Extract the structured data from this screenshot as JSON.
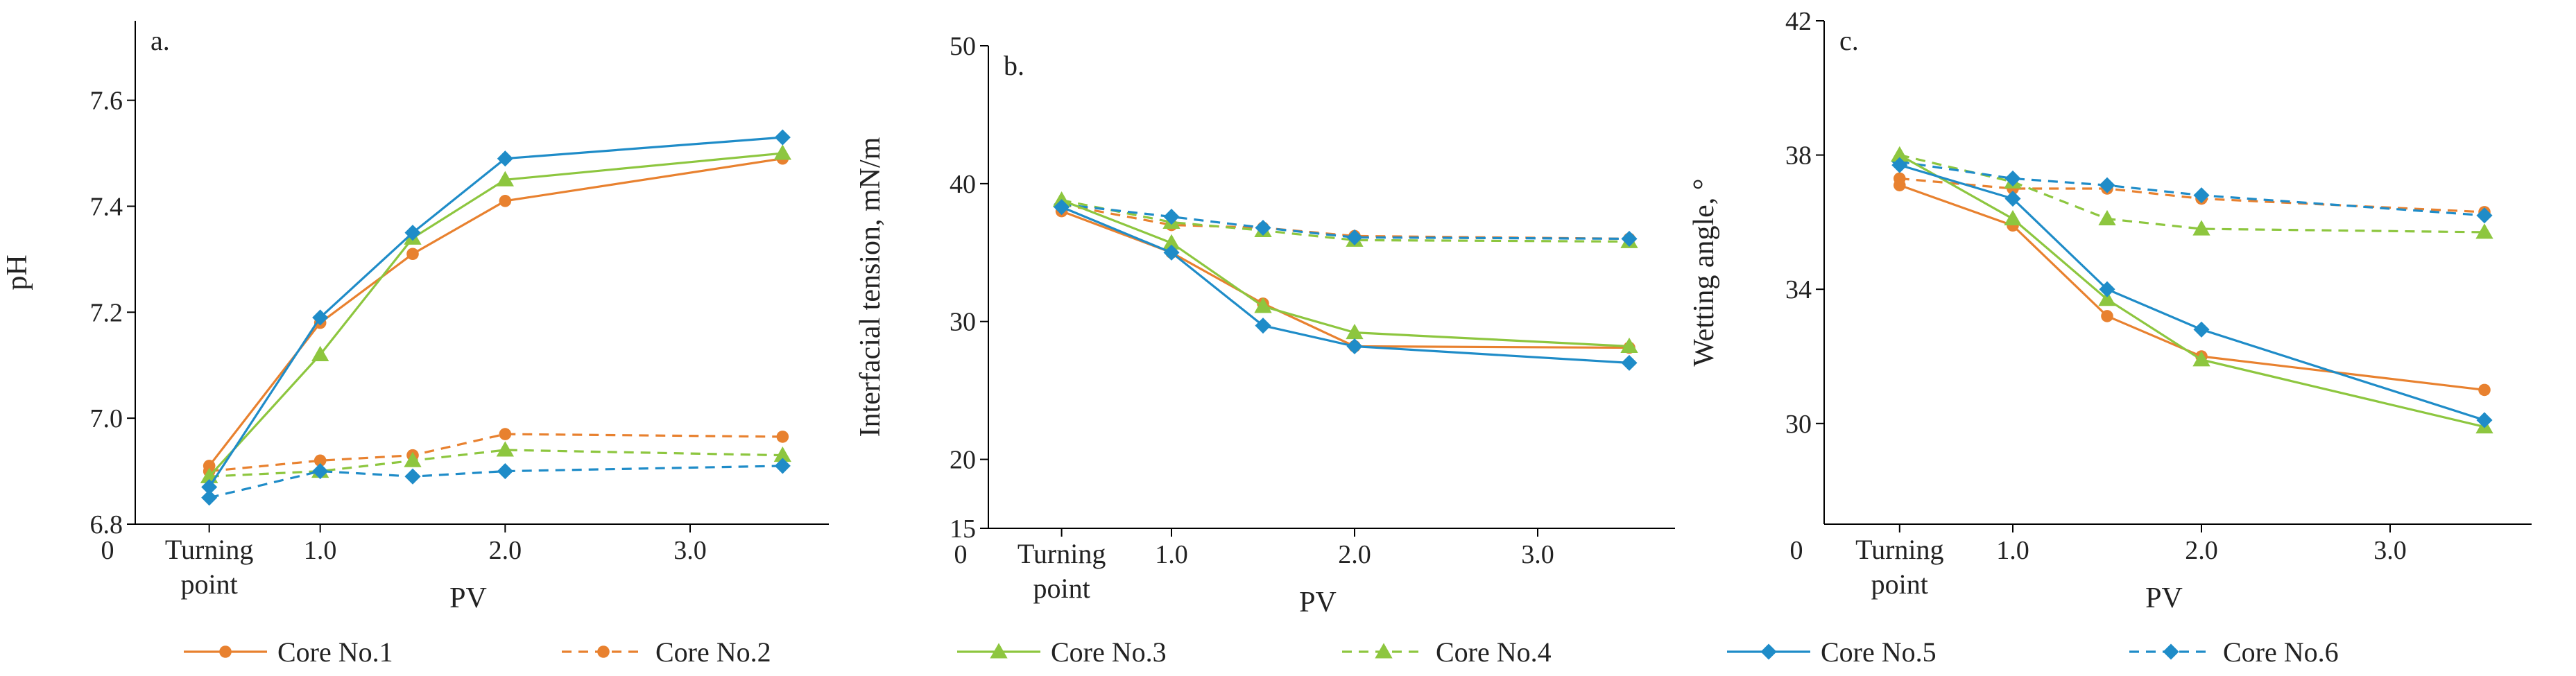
{
  "colors": {
    "core1": "#E8812F",
    "core2": "#E8812F",
    "core3": "#8DC63F",
    "core4": "#8DC63F",
    "core5": "#1F8CC8",
    "core6": "#1F8CC8"
  },
  "legend": [
    {
      "label": "Core No.1",
      "series": "core1",
      "dash": false,
      "marker": "circle"
    },
    {
      "label": "Core No.2",
      "series": "core2",
      "dash": true,
      "marker": "circle"
    },
    {
      "label": "Core No.3",
      "series": "core3",
      "dash": false,
      "marker": "triangle"
    },
    {
      "label": "Core No.4",
      "series": "core4",
      "dash": true,
      "marker": "triangle"
    },
    {
      "label": "Core No.5",
      "series": "core5",
      "dash": false,
      "marker": "diamond"
    },
    {
      "label": "Core No.6",
      "series": "core6",
      "dash": true,
      "marker": "diamond"
    }
  ],
  "chart_data": [
    {
      "type": "line",
      "panel_label": "a.",
      "ylabel": "pH",
      "xlabel": "PV",
      "xlim": [
        0,
        3.75
      ],
      "ylim": [
        6.8,
        7.75
      ],
      "x_ticks": [
        {
          "value": 0,
          "label": "0"
        },
        {
          "value": 1.0,
          "label": "1.0"
        },
        {
          "value": 2.0,
          "label": "2.0"
        },
        {
          "value": 3.0,
          "label": "3.0"
        }
      ],
      "turning_point": {
        "x": 0.4,
        "label_line1": "Turning",
        "label_line2": "point"
      },
      "y_ticks": [
        {
          "value": 6.8,
          "label": "6.8"
        },
        {
          "value": 7.0,
          "label": "7.0"
        },
        {
          "value": 7.2,
          "label": "7.2"
        },
        {
          "value": 7.4,
          "label": "7.4"
        },
        {
          "value": 7.6,
          "label": "7.6"
        }
      ],
      "x": [
        0.4,
        1.0,
        1.5,
        2.0,
        3.5
      ],
      "series": [
        {
          "name": "Core No.1",
          "key": "core1",
          "values": [
            6.91,
            7.18,
            7.31,
            7.41,
            7.49
          ]
        },
        {
          "name": "Core No.2",
          "key": "core2",
          "values": [
            6.9,
            6.92,
            6.93,
            6.97,
            6.965
          ]
        },
        {
          "name": "Core No.3",
          "key": "core3",
          "values": [
            6.89,
            7.12,
            7.34,
            7.45,
            7.5
          ]
        },
        {
          "name": "Core No.4",
          "key": "core4",
          "values": [
            6.89,
            6.9,
            6.92,
            6.94,
            6.93
          ]
        },
        {
          "name": "Core No.5",
          "key": "core5",
          "values": [
            6.87,
            7.19,
            7.35,
            7.49,
            7.53
          ]
        },
        {
          "name": "Core No.6",
          "key": "core6",
          "values": [
            6.85,
            6.9,
            6.89,
            6.9,
            6.91
          ]
        }
      ]
    },
    {
      "type": "line",
      "panel_label": "b.",
      "ylabel": "Interfacial tension, mN/m",
      "xlabel": "PV",
      "xlim": [
        0,
        3.75
      ],
      "ylim": [
        15,
        50
      ],
      "x_ticks": [
        {
          "value": 0,
          "label": "0"
        },
        {
          "value": 1.0,
          "label": "1.0"
        },
        {
          "value": 2.0,
          "label": "2.0"
        },
        {
          "value": 3.0,
          "label": "3.0"
        }
      ],
      "turning_point": {
        "x": 0.4,
        "label_line1": "Turning",
        "label_line2": "point"
      },
      "y_ticks": [
        {
          "value": 15,
          "label": "15"
        },
        {
          "value": 20,
          "label": "20"
        },
        {
          "value": 30,
          "label": "30"
        },
        {
          "value": 40,
          "label": "40"
        },
        {
          "value": 50,
          "label": "50"
        }
      ],
      "x": [
        0.4,
        1.0,
        1.5,
        2.0,
        3.5
      ],
      "series": [
        {
          "name": "Core No.1",
          "key": "core1",
          "values": [
            38.0,
            35.0,
            31.3,
            28.2,
            28.1
          ]
        },
        {
          "name": "Core No.2",
          "key": "core2",
          "values": [
            38.5,
            37.0,
            36.8,
            36.2,
            36.0
          ]
        },
        {
          "name": "Core No.3",
          "key": "core3",
          "values": [
            38.8,
            35.7,
            31.1,
            29.2,
            28.2
          ]
        },
        {
          "name": "Core No.4",
          "key": "core4",
          "values": [
            38.8,
            37.2,
            36.6,
            35.9,
            35.8
          ]
        },
        {
          "name": "Core No.5",
          "key": "core5",
          "values": [
            38.3,
            35.0,
            29.7,
            28.2,
            27.0
          ]
        },
        {
          "name": "Core No.6",
          "key": "core6",
          "values": [
            38.5,
            37.6,
            36.8,
            36.1,
            36.0
          ]
        }
      ]
    },
    {
      "type": "line",
      "panel_label": "c.",
      "ylabel": "Wetting angle, °",
      "xlabel": "PV",
      "xlim": [
        0,
        3.75
      ],
      "ylim": [
        27,
        42
      ],
      "x_ticks": [
        {
          "value": 0,
          "label": "0"
        },
        {
          "value": 1.0,
          "label": "1.0"
        },
        {
          "value": 2.0,
          "label": "2.0"
        },
        {
          "value": 3.0,
          "label": "3.0"
        }
      ],
      "turning_point": {
        "x": 0.4,
        "label_line1": "Turning",
        "label_line2": "point"
      },
      "y_ticks": [
        {
          "value": 30,
          "label": "30"
        },
        {
          "value": 34,
          "label": "34"
        },
        {
          "value": 38,
          "label": "38"
        },
        {
          "value": 42,
          "label": "42"
        }
      ],
      "x": [
        0.4,
        1.0,
        1.5,
        2.0,
        3.5
      ],
      "series": [
        {
          "name": "Core No.1",
          "key": "core1",
          "values": [
            37.1,
            35.9,
            33.2,
            32.0,
            31.0
          ]
        },
        {
          "name": "Core No.2",
          "key": "core2",
          "values": [
            37.3,
            37.0,
            37.0,
            36.7,
            36.3
          ]
        },
        {
          "name": "Core No.3",
          "key": "core3",
          "values": [
            38.0,
            36.1,
            33.7,
            31.9,
            29.9
          ]
        },
        {
          "name": "Core No.4",
          "key": "core4",
          "values": [
            38.0,
            37.2,
            36.1,
            35.8,
            35.7
          ]
        },
        {
          "name": "Core No.5",
          "key": "core5",
          "values": [
            37.7,
            36.7,
            34.0,
            32.8,
            30.1
          ]
        },
        {
          "name": "Core No.6",
          "key": "core6",
          "values": [
            37.8,
            37.3,
            37.1,
            36.8,
            36.2
          ]
        }
      ]
    }
  ]
}
